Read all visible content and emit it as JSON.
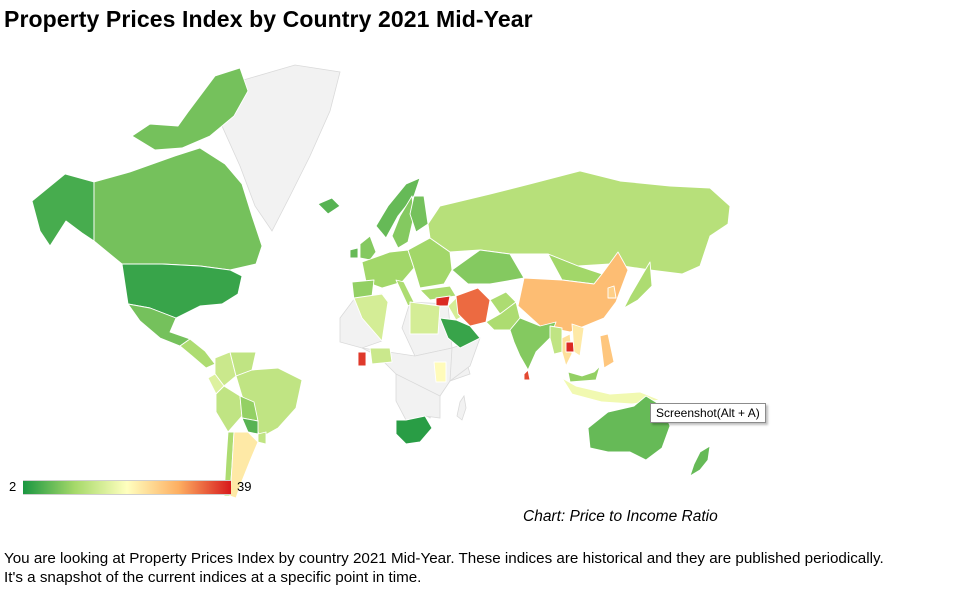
{
  "page": {
    "title": "Property Prices Index by Country 2021 Mid-Year",
    "caption": "Chart: Price to Income Ratio",
    "description_line1": "You are looking at Property Prices Index by country 2021 Mid-Year. These indices are historical and they are published periodically.",
    "description_line2": "It's a snapshot of the current indices at a specific point in time.",
    "tooltip": "Screenshot(Alt + A)"
  },
  "map": {
    "metric": "Price to Income Ratio",
    "legend": {
      "min": "2",
      "max": "39"
    },
    "color_scale": [
      "#1a9641",
      "#a6d96a",
      "#ffffbf",
      "#fdae61",
      "#d7191c"
    ],
    "no_data_color": "#f2f2f2",
    "regions": [
      {
        "name": "Alaska (United States)",
        "value": 5
      },
      {
        "name": "Canada",
        "value": 8
      },
      {
        "name": "Canadian Arctic Islands",
        "value": 8
      },
      {
        "name": "United States",
        "value": 4
      },
      {
        "name": "Mexico",
        "value": 8
      },
      {
        "name": "Central America",
        "value": 12
      },
      {
        "name": "Colombia",
        "value": 15
      },
      {
        "name": "Venezuela",
        "value": 14
      },
      {
        "name": "Ecuador",
        "value": 17
      },
      {
        "name": "Peru",
        "value": 14
      },
      {
        "name": "Brazil",
        "value": 14
      },
      {
        "name": "Bolivia",
        "value": 10
      },
      {
        "name": "Paraguay",
        "value": 6
      },
      {
        "name": "Uruguay",
        "value": 14
      },
      {
        "name": "Chile",
        "value": 12
      },
      {
        "name": "Argentina",
        "value": 23
      },
      {
        "name": "Iceland",
        "value": 6
      },
      {
        "name": "Norway",
        "value": 7
      },
      {
        "name": "Sweden",
        "value": 9
      },
      {
        "name": "Finland",
        "value": 8
      },
      {
        "name": "United Kingdom",
        "value": 9
      },
      {
        "name": "Ireland",
        "value": 7
      },
      {
        "name": "Western Europe",
        "value": 11
      },
      {
        "name": "Iberia",
        "value": 10
      },
      {
        "name": "Italy",
        "value": 12
      },
      {
        "name": "Eastern Europe",
        "value": 11
      },
      {
        "name": "Russia",
        "value": 13
      },
      {
        "name": "Kazakhstan",
        "value": 9
      },
      {
        "name": "Mongolia",
        "value": 11
      },
      {
        "name": "China",
        "value": 28
      },
      {
        "name": "Japan",
        "value": 12
      },
      {
        "name": "South Korea",
        "value": 26
      },
      {
        "name": "Turkey",
        "value": 12
      },
      {
        "name": "Syria",
        "value": 38
      },
      {
        "name": "Iraq",
        "value": 16
      },
      {
        "name": "Iran",
        "value": 34
      },
      {
        "name": "Saudi Arabia",
        "value": 4
      },
      {
        "name": "Afghanistan",
        "value": 12
      },
      {
        "name": "Pakistan",
        "value": 12
      },
      {
        "name": "India",
        "value": 9
      },
      {
        "name": "Sri Lanka",
        "value": 36
      },
      {
        "name": "Myanmar",
        "value": 14
      },
      {
        "name": "Thailand",
        "value": 24
      },
      {
        "name": "Cambodia",
        "value": 38
      },
      {
        "name": "Vietnam",
        "value": 23
      },
      {
        "name": "Philippines",
        "value": 27
      },
      {
        "name": "Malaysia",
        "value": 10
      },
      {
        "name": "Indonesia",
        "value": 19
      },
      {
        "name": "Australia",
        "value": 7
      },
      {
        "name": "New Zealand",
        "value": 7
      },
      {
        "name": "Algeria",
        "value": 16
      },
      {
        "name": "Egypt",
        "value": 16
      },
      {
        "name": "Ghana",
        "value": 37
      },
      {
        "name": "Nigeria",
        "value": 15
      },
      {
        "name": "Kenya",
        "value": 21
      },
      {
        "name": "South Africa",
        "value": 3
      }
    ]
  }
}
